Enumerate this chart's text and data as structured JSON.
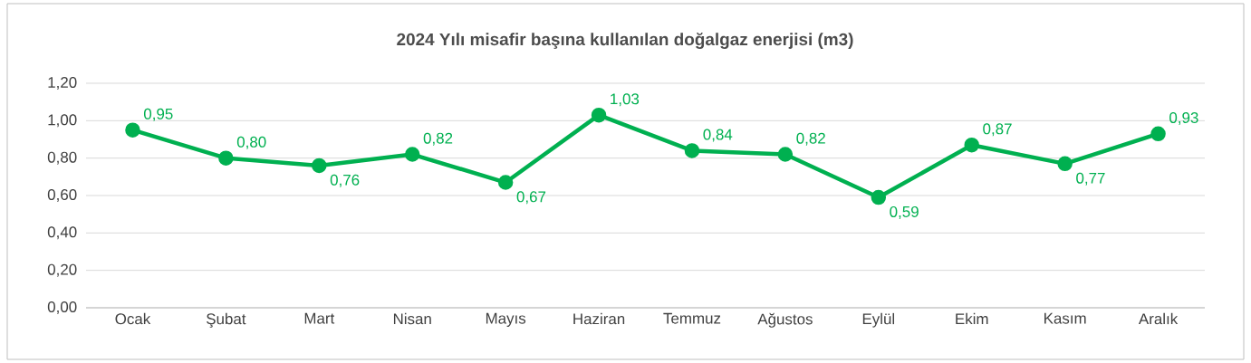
{
  "chart_data": {
    "type": "line",
    "title": "2024 Yılı misafir başına kullanılan doğalgaz enerjisi  (m3)",
    "categories": [
      "Ocak",
      "Şubat",
      "Mart",
      "Nisan",
      "Mayıs",
      "Haziran",
      "Temmuz",
      "Ağustos",
      "Eylül",
      "Ekim",
      "Kasım",
      "Aralık"
    ],
    "series": [
      {
        "color": "#00b050",
        "values": [
          0.95,
          0.8,
          0.76,
          0.82,
          0.67,
          1.03,
          0.84,
          0.82,
          0.59,
          0.87,
          0.77,
          0.93
        ],
        "value_labels": [
          "0,95",
          "0,80",
          "0,76",
          "0,82",
          "0,67",
          "1,03",
          "0,84",
          "0,82",
          "0,59",
          "0,87",
          "0,77",
          "0,93"
        ]
      }
    ],
    "ylim": [
      0,
      1.2
    ],
    "yticks": [
      {
        "value": 0,
        "label": "0,00"
      },
      {
        "value": 0.2,
        "label": "0,20"
      },
      {
        "value": 0.4,
        "label": "0,40"
      },
      {
        "value": 0.6,
        "label": "0,60"
      },
      {
        "value": 0.8,
        "label": "0,80"
      },
      {
        "value": 1.0,
        "label": "1,00"
      },
      {
        "value": 1.2,
        "label": "1,20"
      }
    ],
    "grid": "y",
    "marker": "circle",
    "line_style": "solid"
  }
}
